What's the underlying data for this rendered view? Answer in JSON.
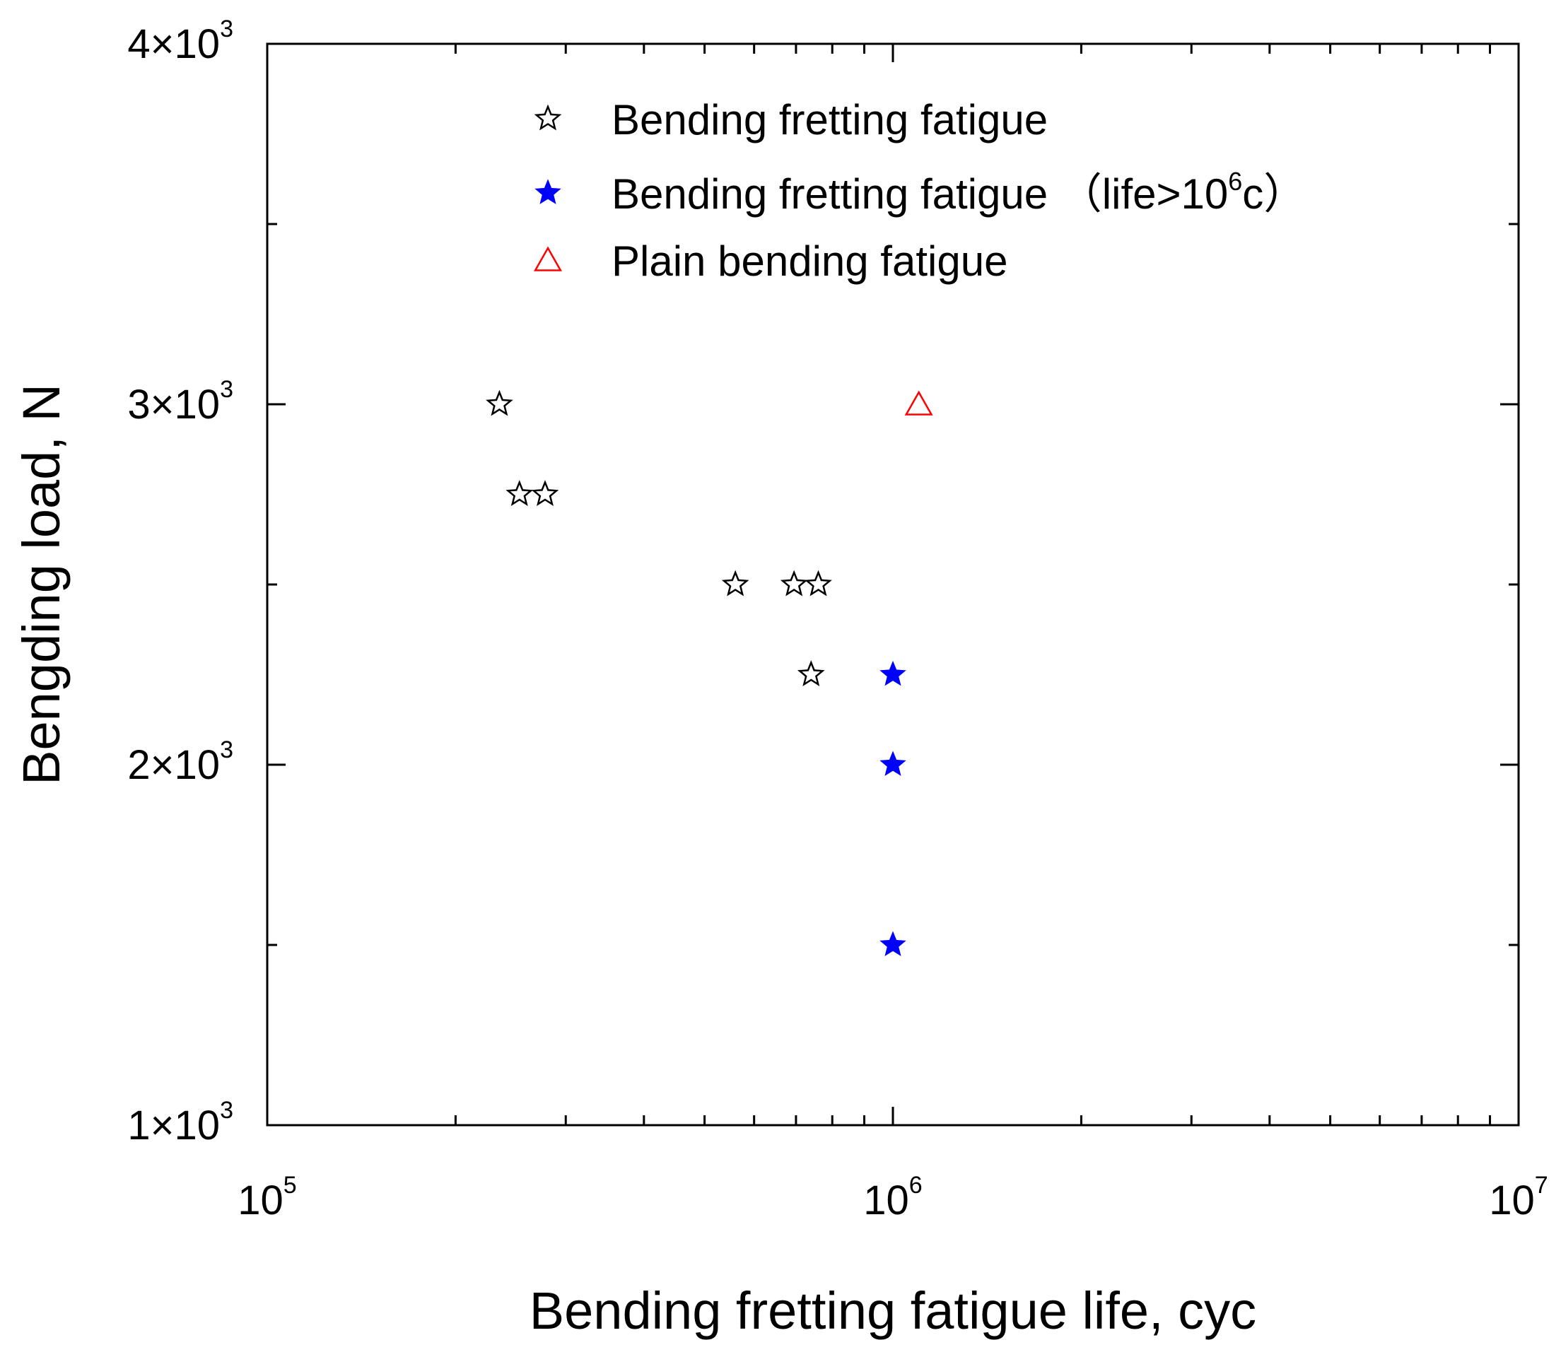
{
  "chart_data": {
    "type": "scatter",
    "title": "",
    "xlabel": "Bending fretting fatigue life, cyc",
    "ylabel": "Bengding load, N",
    "x_scale": "log",
    "y_scale": "linear",
    "xlim": [
      100000,
      10000000
    ],
    "ylim": [
      1000,
      4000
    ],
    "x_ticks": [
      {
        "value": 100000,
        "base": "10",
        "exp": "5"
      },
      {
        "value": 1000000,
        "base": "10",
        "exp": "6"
      },
      {
        "value": 10000000,
        "base": "10",
        "exp": "7"
      }
    ],
    "y_ticks": [
      {
        "value": 1000,
        "base": "1×10",
        "exp": "3"
      },
      {
        "value": 2000,
        "base": "2×10",
        "exp": "3"
      },
      {
        "value": 3000,
        "base": "3×10",
        "exp": "3"
      },
      {
        "value": 4000,
        "base": "4×10",
        "exp": "3"
      }
    ],
    "grid": false,
    "legend_position": "top-center",
    "series": [
      {
        "name": "Bending fretting fatigue",
        "legend_label": "Bending fretting fatigue",
        "marker": "star-open",
        "color": "#000000",
        "points": [
          {
            "x": 235000,
            "y": 3000
          },
          {
            "x": 253000,
            "y": 2750
          },
          {
            "x": 278000,
            "y": 2750
          },
          {
            "x": 560000,
            "y": 2500
          },
          {
            "x": 695000,
            "y": 2500
          },
          {
            "x": 760000,
            "y": 2500
          },
          {
            "x": 740000,
            "y": 2250
          }
        ]
      },
      {
        "name": "Bending fretting fatigue (life>10^6c)",
        "legend_label": "Bending fretting fatigue  （life>10",
        "legend_sup": "6",
        "legend_suffix": "c）",
        "marker": "star-filled",
        "color": "#0000ff",
        "points": [
          {
            "x": 1000000,
            "y": 2250
          },
          {
            "x": 1000000,
            "y": 2000
          },
          {
            "x": 1000000,
            "y": 1500
          }
        ]
      },
      {
        "name": "Plain bending fatigue",
        "legend_label": "Plain bending fatigue",
        "marker": "triangle-open",
        "color": "#ff0000",
        "points": [
          {
            "x": 1100000,
            "y": 3000
          }
        ]
      }
    ]
  }
}
